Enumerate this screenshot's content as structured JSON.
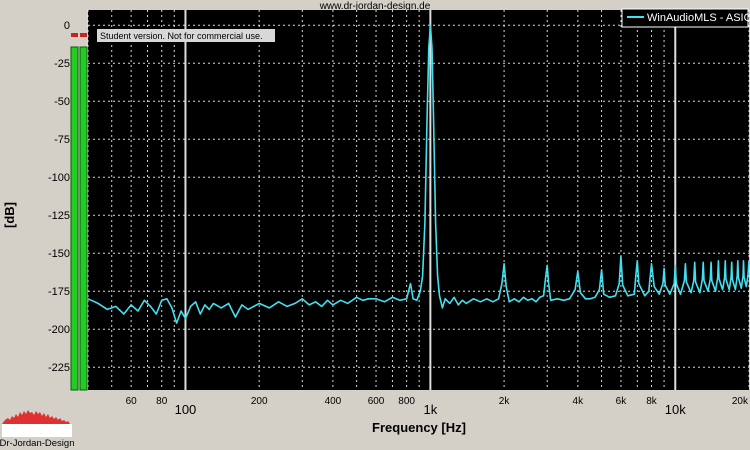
{
  "header": {
    "url": "www.dr-jordan-design.de"
  },
  "watermark": "Student version. Not for commercial use.",
  "logo": {
    "text": "Dr-Jordan-Design",
    "accent": "#e03030"
  },
  "colors": {
    "background": "#000000",
    "trace": "#40e0f0",
    "grid": "#ffffff",
    "meter": "#22cc22",
    "meter_peak": "#cc2222"
  },
  "chart_data": {
    "type": "line",
    "title": "",
    "xlabel": "Frequency [Hz]",
    "ylabel": "[dB]",
    "x_scale": "log",
    "xlim": [
      40,
      20000
    ],
    "ylim": [
      -240,
      10
    ],
    "grid": true,
    "legend": {
      "position": "top-right",
      "entries": [
        "WinAudioMLS - ASIO"
      ]
    },
    "y_ticks": [
      {
        "value": 0,
        "label": "0"
      },
      {
        "value": -25,
        "label": "-25"
      },
      {
        "value": -50,
        "label": "-50"
      },
      {
        "value": -75,
        "label": "-75"
      },
      {
        "value": -100,
        "label": "-100"
      },
      {
        "value": -125,
        "label": "-125"
      },
      {
        "value": -150,
        "label": "-150"
      },
      {
        "value": -175,
        "label": "-175"
      },
      {
        "value": -200,
        "label": "-200"
      },
      {
        "value": -225,
        "label": "-225"
      }
    ],
    "x_ticks_minor": [
      {
        "value": 60,
        "label": "60"
      },
      {
        "value": 80,
        "label": "80"
      },
      {
        "value": 200,
        "label": "200"
      },
      {
        "value": 400,
        "label": "400"
      },
      {
        "value": 600,
        "label": "600"
      },
      {
        "value": 800,
        "label": "800"
      },
      {
        "value": 2000,
        "label": "2k"
      },
      {
        "value": 4000,
        "label": "4k"
      },
      {
        "value": 6000,
        "label": "6k"
      },
      {
        "value": 8000,
        "label": "8k"
      },
      {
        "value": 20000,
        "label": "20k"
      }
    ],
    "x_ticks_major": [
      {
        "value": 100,
        "label": "100"
      },
      {
        "value": 1000,
        "label": "1k"
      },
      {
        "value": 10000,
        "label": "10k"
      }
    ],
    "series": [
      {
        "name": "WinAudioMLS - ASIO",
        "points": [
          [
            40,
            -180
          ],
          [
            44,
            -183
          ],
          [
            48,
            -187
          ],
          [
            52,
            -185
          ],
          [
            56,
            -190
          ],
          [
            60,
            -184
          ],
          [
            64,
            -188
          ],
          [
            68,
            -181
          ],
          [
            72,
            -185
          ],
          [
            76,
            -190
          ],
          [
            80,
            -181
          ],
          [
            84,
            -180
          ],
          [
            88,
            -186
          ],
          [
            92,
            -196
          ],
          [
            96,
            -188
          ],
          [
            100,
            -193
          ],
          [
            105,
            -185
          ],
          [
            110,
            -182
          ],
          [
            115,
            -190
          ],
          [
            120,
            -184
          ],
          [
            125,
            -187
          ],
          [
            130,
            -183
          ],
          [
            140,
            -186
          ],
          [
            150,
            -183
          ],
          [
            160,
            -192
          ],
          [
            170,
            -184
          ],
          [
            180,
            -187
          ],
          [
            190,
            -185
          ],
          [
            200,
            -183
          ],
          [
            220,
            -186
          ],
          [
            240,
            -182
          ],
          [
            260,
            -185
          ],
          [
            280,
            -183
          ],
          [
            300,
            -180
          ],
          [
            320,
            -184
          ],
          [
            340,
            -182
          ],
          [
            360,
            -185
          ],
          [
            380,
            -181
          ],
          [
            400,
            -184
          ],
          [
            430,
            -181
          ],
          [
            460,
            -183
          ],
          [
            500,
            -179
          ],
          [
            530,
            -181
          ],
          [
            560,
            -180
          ],
          [
            600,
            -180
          ],
          [
            650,
            -182
          ],
          [
            700,
            -179
          ],
          [
            750,
            -181
          ],
          [
            800,
            -180
          ],
          [
            830,
            -170
          ],
          [
            850,
            -180
          ],
          [
            880,
            -181
          ],
          [
            910,
            -175
          ],
          [
            930,
            -165
          ],
          [
            950,
            -130
          ],
          [
            970,
            -60
          ],
          [
            985,
            -15
          ],
          [
            1000,
            0
          ],
          [
            1015,
            -15
          ],
          [
            1030,
            -60
          ],
          [
            1050,
            -130
          ],
          [
            1070,
            -165
          ],
          [
            1090,
            -178
          ],
          [
            1120,
            -186
          ],
          [
            1150,
            -180
          ],
          [
            1200,
            -183
          ],
          [
            1250,
            -179
          ],
          [
            1300,
            -184
          ],
          [
            1350,
            -181
          ],
          [
            1400,
            -183
          ],
          [
            1500,
            -180
          ],
          [
            1600,
            -182
          ],
          [
            1700,
            -180
          ],
          [
            1800,
            -182
          ],
          [
            1900,
            -180
          ],
          [
            1960,
            -170
          ],
          [
            2000,
            -157
          ],
          [
            2040,
            -172
          ],
          [
            2100,
            -182
          ],
          [
            2200,
            -180
          ],
          [
            2300,
            -182
          ],
          [
            2400,
            -179
          ],
          [
            2500,
            -181
          ],
          [
            2600,
            -180
          ],
          [
            2700,
            -182
          ],
          [
            2800,
            -179
          ],
          [
            2900,
            -178
          ],
          [
            2960,
            -165
          ],
          [
            3000,
            -158
          ],
          [
            3040,
            -170
          ],
          [
            3100,
            -181
          ],
          [
            3300,
            -180
          ],
          [
            3500,
            -181
          ],
          [
            3700,
            -180
          ],
          [
            3900,
            -174
          ],
          [
            4000,
            -162
          ],
          [
            4100,
            -176
          ],
          [
            4300,
            -180
          ],
          [
            4500,
            -180
          ],
          [
            4700,
            -179
          ],
          [
            4900,
            -174
          ],
          [
            5000,
            -161
          ],
          [
            5100,
            -177
          ],
          [
            5400,
            -179
          ],
          [
            5700,
            -178
          ],
          [
            5900,
            -170
          ],
          [
            6000,
            -152
          ],
          [
            6100,
            -171
          ],
          [
            6400,
            -178
          ],
          [
            6800,
            -177
          ],
          [
            6900,
            -165
          ],
          [
            7000,
            -155
          ],
          [
            7100,
            -170
          ],
          [
            7500,
            -178
          ],
          [
            7800,
            -175
          ],
          [
            8000,
            -157
          ],
          [
            8200,
            -172
          ],
          [
            8600,
            -177
          ],
          [
            8900,
            -170
          ],
          [
            9000,
            -160
          ],
          [
            9100,
            -171
          ],
          [
            9500,
            -177
          ],
          [
            9900,
            -170
          ],
          [
            10000,
            -158
          ],
          [
            10100,
            -170
          ],
          [
            10500,
            -177
          ],
          [
            10900,
            -168
          ],
          [
            11000,
            -157
          ],
          [
            11100,
            -169
          ],
          [
            11600,
            -176
          ],
          [
            11900,
            -168
          ],
          [
            12000,
            -156
          ],
          [
            12100,
            -169
          ],
          [
            12600,
            -176
          ],
          [
            12900,
            -167
          ],
          [
            13000,
            -156
          ],
          [
            13100,
            -168
          ],
          [
            13600,
            -175
          ],
          [
            13900,
            -167
          ],
          [
            14000,
            -156
          ],
          [
            14100,
            -168
          ],
          [
            14600,
            -175
          ],
          [
            14900,
            -166
          ],
          [
            15000,
            -155
          ],
          [
            15100,
            -167
          ],
          [
            15600,
            -174
          ],
          [
            15900,
            -166
          ],
          [
            16000,
            -155
          ],
          [
            16100,
            -167
          ],
          [
            16600,
            -174
          ],
          [
            16900,
            -166
          ],
          [
            17000,
            -156
          ],
          [
            17100,
            -167
          ],
          [
            17600,
            -174
          ],
          [
            17900,
            -165
          ],
          [
            18000,
            -155
          ],
          [
            18100,
            -166
          ],
          [
            18600,
            -173
          ],
          [
            18900,
            -165
          ],
          [
            19000,
            -155
          ],
          [
            19100,
            -166
          ],
          [
            19500,
            -172
          ],
          [
            19800,
            -165
          ],
          [
            20000,
            -155
          ]
        ]
      }
    ]
  }
}
